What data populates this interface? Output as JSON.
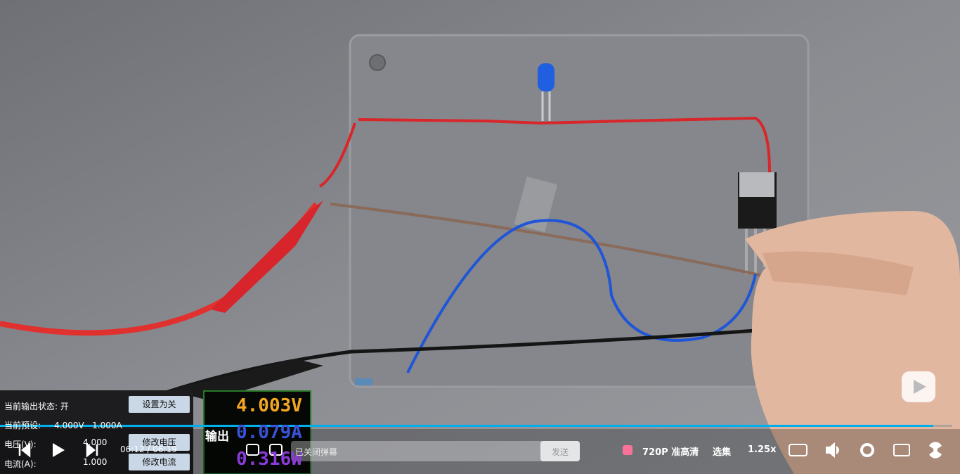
{
  "video_overlay": {
    "status_label": "当前输出状态:",
    "status": "开",
    "set_off_button": "设置为关",
    "preset_label": "当前预设:",
    "preset_voltage": "4.000V",
    "preset_current": "1.000A",
    "voltage_label": "电压(V):",
    "voltage_value": "4.000",
    "modify_voltage": "修改电压",
    "current_label": "电流(A):",
    "current_value": "1.000",
    "modify_current": "修改电流",
    "display": {
      "voltage": "4.003V",
      "label": "输出",
      "current": "0.079A",
      "power": "0.316W"
    }
  },
  "player": {
    "time": "06:12 / 06:19",
    "danmaku_placeholder": "已关闭弹幕",
    "send": "发送",
    "quality": "720P 准高清",
    "episodes": "选集",
    "speed": "1.25x"
  }
}
